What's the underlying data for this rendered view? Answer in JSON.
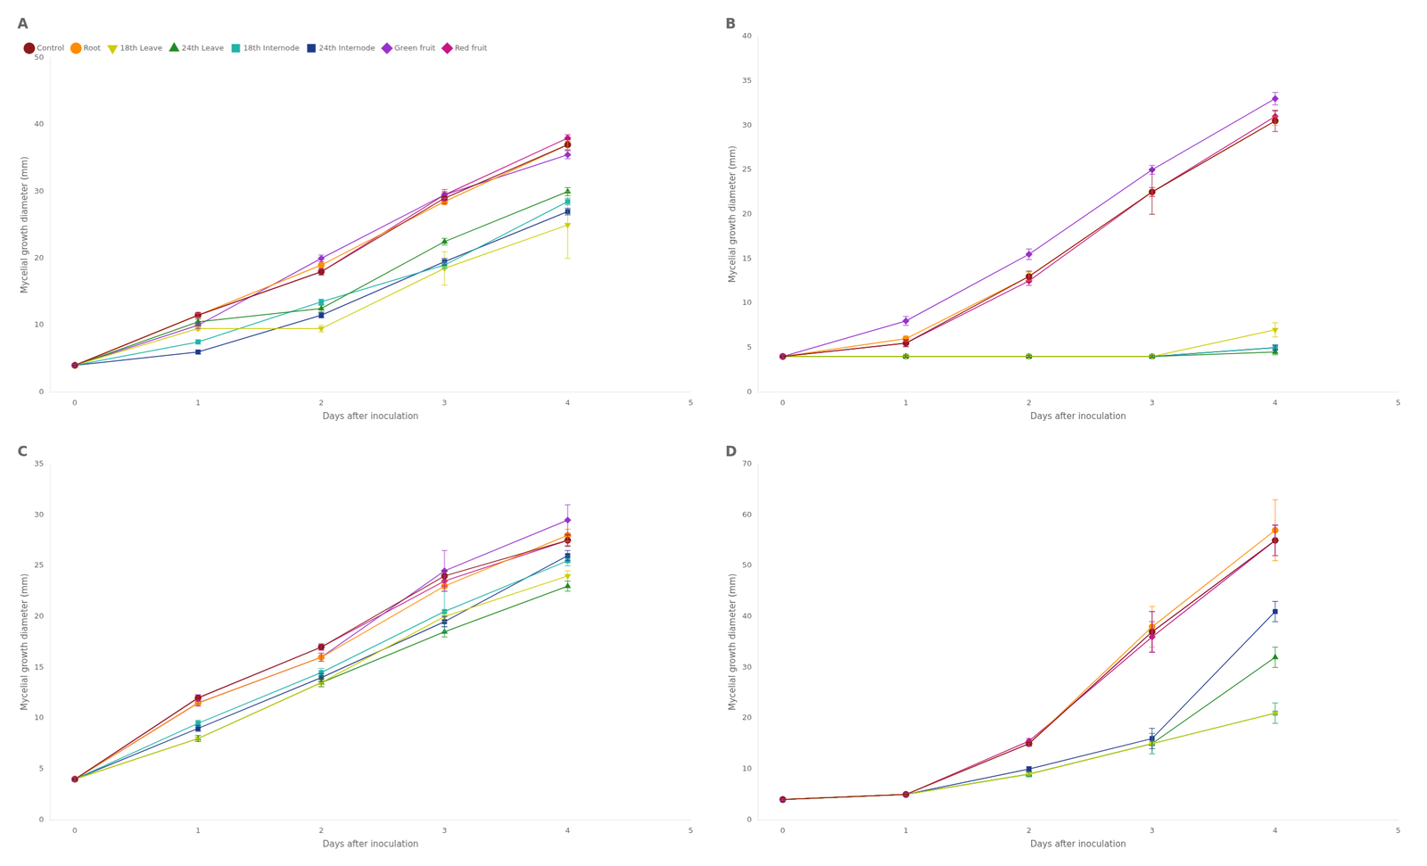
{
  "chart_data": [
    {
      "type": "line",
      "title": "A",
      "x_label": "Days after inoculation",
      "y_label": "Mycelial growth diameter (mm)",
      "x": [
        0,
        1,
        2,
        3,
        4
      ],
      "xlim": [
        -0.2,
        5
      ],
      "xticks": [
        0,
        1,
        2,
        3,
        4,
        5
      ],
      "ylim": [
        0,
        50
      ],
      "yticks": [
        0,
        10,
        20,
        30,
        40,
        50
      ],
      "grid": false,
      "legend": "upper left",
      "series": [
        {
          "name": "Control",
          "color": "#8B1A1A",
          "marker": "circle",
          "values": [
            4.0,
            11.5,
            18.0,
            29.0,
            37.0
          ],
          "yerr": [
            0.2,
            0.4,
            0.5,
            0.8,
            0.8
          ]
        },
        {
          "name": "Root",
          "color": "#FF8C00",
          "marker": "circle",
          "values": [
            4.0,
            11.5,
            19.0,
            28.5,
            37.0
          ],
          "yerr": [
            0.2,
            0.3,
            0.5,
            0.5,
            0.7
          ]
        },
        {
          "name": "18th Leave",
          "color": "#CCCC00",
          "marker": "triangle_down",
          "values": [
            4.0,
            9.5,
            9.5,
            18.5,
            25.0
          ],
          "yerr": [
            0.2,
            0.3,
            0.5,
            2.5,
            5.0
          ]
        },
        {
          "name": "24th Leave",
          "color": "#228B22",
          "marker": "triangle_up",
          "values": [
            4.0,
            10.5,
            12.5,
            22.5,
            30.0
          ],
          "yerr": [
            0.2,
            0.4,
            0.5,
            0.5,
            0.6
          ]
        },
        {
          "name": "18th Internode",
          "color": "#20B2AA",
          "marker": "square",
          "values": [
            4.0,
            7.5,
            13.5,
            19.0,
            28.5
          ],
          "yerr": [
            0.2,
            0.3,
            0.4,
            0.5,
            0.5
          ]
        },
        {
          "name": "24th Internode",
          "color": "#1E3A8A",
          "marker": "square",
          "values": [
            4.0,
            6.0,
            11.5,
            19.5,
            27.0
          ],
          "yerr": [
            0.2,
            0.3,
            0.4,
            0.5,
            0.5
          ]
        },
        {
          "name": "Green fruit",
          "color": "#9932CC",
          "marker": "diamond",
          "values": [
            4.0,
            10.0,
            20.0,
            29.5,
            35.5
          ],
          "yerr": [
            0.2,
            0.5,
            0.5,
            0.5,
            0.6
          ]
        },
        {
          "name": "Red fruit",
          "color": "#C71585",
          "marker": "diamond",
          "values": [
            4.0,
            11.5,
            18.0,
            29.5,
            38.0
          ],
          "yerr": [
            0.2,
            0.4,
            0.5,
            0.8,
            0.5
          ]
        }
      ]
    },
    {
      "type": "line",
      "title": "B",
      "x_label": "Days after inoculation",
      "y_label": "Mycelial growth diameter (mm)",
      "x": [
        0,
        1,
        2,
        3,
        4
      ],
      "xlim": [
        -0.2,
        5
      ],
      "xticks": [
        0,
        1,
        2,
        3,
        4,
        5
      ],
      "ylim": [
        0,
        40
      ],
      "yticks": [
        0,
        5,
        10,
        15,
        20,
        25,
        30,
        35,
        40
      ],
      "grid": false,
      "series": [
        {
          "name": "Control",
          "color": "#8B1A1A",
          "marker": "circle",
          "values": [
            4.0,
            5.5,
            13.0,
            22.5,
            30.5
          ],
          "yerr": [
            0.2,
            0.4,
            0.6,
            2.5,
            1.2
          ]
        },
        {
          "name": "Root",
          "color": "#FF8C00",
          "marker": "circle",
          "values": [
            4.0,
            6.0,
            13.0,
            22.5,
            30.5
          ],
          "yerr": [
            0.2,
            0.3,
            0.5,
            0.5,
            0.5
          ]
        },
        {
          "name": "18th Leave",
          "color": "#CCCC00",
          "marker": "triangle_down",
          "values": [
            4.0,
            4.0,
            4.0,
            4.0,
            7.0
          ],
          "yerr": [
            0.1,
            0.1,
            0.1,
            0.1,
            0.8
          ]
        },
        {
          "name": "24th Leave",
          "color": "#228B22",
          "marker": "triangle_up",
          "values": [
            4.0,
            4.0,
            4.0,
            4.0,
            4.5
          ],
          "yerr": [
            0.1,
            0.1,
            0.1,
            0.1,
            0.3
          ]
        },
        {
          "name": "18th Internode",
          "color": "#20B2AA",
          "marker": "square",
          "values": [
            4.0,
            4.0,
            4.0,
            4.0,
            5.0
          ],
          "yerr": [
            0.1,
            0.1,
            0.1,
            0.1,
            0.3
          ]
        },
        {
          "name": "24th Internode",
          "color": "#1E3A8A",
          "marker": "square",
          "values": [
            4.0,
            4.0,
            4.0,
            4.0,
            5.0
          ],
          "yerr": [
            0.1,
            0.1,
            0.1,
            0.1,
            0.3
          ]
        },
        {
          "name": "Green fruit",
          "color": "#9932CC",
          "marker": "diamond",
          "values": [
            4.0,
            8.0,
            15.5,
            25.0,
            33.0
          ],
          "yerr": [
            0.2,
            0.5,
            0.6,
            0.5,
            0.7
          ]
        },
        {
          "name": "Red fruit",
          "color": "#C71585",
          "marker": "diamond",
          "values": [
            4.0,
            5.5,
            12.5,
            22.5,
            31.0
          ],
          "yerr": [
            0.2,
            0.4,
            0.5,
            0.5,
            0.6
          ]
        }
      ]
    },
    {
      "type": "line",
      "title": "C",
      "x_label": "Days after inoculation",
      "y_label": "Mycelial growth diameter (mm)",
      "x": [
        0,
        1,
        2,
        3,
        4
      ],
      "xlim": [
        -0.2,
        5
      ],
      "xticks": [
        0,
        1,
        2,
        3,
        4,
        5
      ],
      "ylim": [
        0,
        35
      ],
      "yticks": [
        0,
        5,
        10,
        15,
        20,
        25,
        30,
        35
      ],
      "grid": false,
      "series": [
        {
          "name": "Control",
          "color": "#8B1A1A",
          "marker": "circle",
          "values": [
            4.0,
            12.0,
            17.0,
            24.0,
            27.5
          ],
          "yerr": [
            0.2,
            0.3,
            0.3,
            0.5,
            0.6
          ]
        },
        {
          "name": "Root",
          "color": "#FF8C00",
          "marker": "circle",
          "values": [
            4.0,
            11.5,
            16.0,
            23.0,
            28.0
          ],
          "yerr": [
            0.2,
            0.3,
            0.4,
            0.5,
            0.6
          ]
        },
        {
          "name": "18th Leave",
          "color": "#CCCC00",
          "marker": "triangle_down",
          "values": [
            4.0,
            8.0,
            13.5,
            20.0,
            24.0
          ],
          "yerr": [
            0.2,
            0.3,
            0.4,
            0.5,
            0.5
          ]
        },
        {
          "name": "24th Leave",
          "color": "#228B22",
          "marker": "triangle_up",
          "values": [
            4.0,
            8.0,
            13.5,
            18.5,
            23.0
          ],
          "yerr": [
            0.2,
            0.3,
            0.4,
            0.5,
            0.5
          ]
        },
        {
          "name": "18th Internode",
          "color": "#20B2AA",
          "marker": "square",
          "values": [
            4.0,
            9.5,
            14.5,
            20.5,
            25.5
          ],
          "yerr": [
            0.2,
            0.3,
            0.4,
            2.0,
            0.5
          ]
        },
        {
          "name": "24th Internode",
          "color": "#1E3A8A",
          "marker": "square",
          "values": [
            4.0,
            9.0,
            14.0,
            19.5,
            26.0
          ],
          "yerr": [
            0.2,
            0.3,
            0.4,
            0.5,
            0.5
          ]
        },
        {
          "name": "Green fruit",
          "color": "#9932CC",
          "marker": "diamond",
          "values": [
            4.0,
            11.5,
            16.0,
            24.5,
            29.5
          ],
          "yerr": [
            0.2,
            0.3,
            0.4,
            2.0,
            1.5
          ]
        },
        {
          "name": "Red fruit",
          "color": "#C71585",
          "marker": "diamond",
          "values": [
            4.0,
            12.0,
            17.0,
            23.5,
            27.5
          ],
          "yerr": [
            0.2,
            0.3,
            0.3,
            0.5,
            0.5
          ]
        }
      ]
    },
    {
      "type": "line",
      "title": "D",
      "x_label": "Days after inoculation",
      "y_label": "Mycelial growth diameter (mm)",
      "x": [
        0,
        1,
        2,
        3,
        4
      ],
      "xlim": [
        -0.2,
        5
      ],
      "xticks": [
        0,
        1,
        2,
        3,
        4,
        5
      ],
      "ylim": [
        0,
        70
      ],
      "yticks": [
        0,
        10,
        20,
        30,
        40,
        50,
        60,
        70
      ],
      "grid": false,
      "series": [
        {
          "name": "Control",
          "color": "#8B1A1A",
          "marker": "circle",
          "values": [
            4.0,
            5.0,
            15.0,
            37.0,
            55.0
          ],
          "yerr": [
            0.2,
            0.3,
            0.5,
            4.0,
            3.0
          ]
        },
        {
          "name": "Root",
          "color": "#FF8C00",
          "marker": "circle",
          "values": [
            4.0,
            5.0,
            15.0,
            38.0,
            57.0
          ],
          "yerr": [
            0.2,
            0.3,
            0.5,
            4.0,
            6.0
          ]
        },
        {
          "name": "18th Leave",
          "color": "#CCCC00",
          "marker": "triangle_down",
          "values": [
            4.0,
            5.0,
            9.0,
            15.0,
            21.0
          ],
          "yerr": [
            0.2,
            0.3,
            0.5,
            2.0,
            2.0
          ]
        },
        {
          "name": "24th Leave",
          "color": "#228B22",
          "marker": "triangle_up",
          "values": [
            4.0,
            5.0,
            9.0,
            15.0,
            32.0
          ],
          "yerr": [
            0.2,
            0.3,
            0.5,
            2.0,
            2.0
          ]
        },
        {
          "name": "18th Internode",
          "color": "#20B2AA",
          "marker": "square",
          "values": [
            4.0,
            5.0,
            9.0,
            15.0,
            21.0
          ],
          "yerr": [
            0.2,
            0.3,
            0.5,
            2.0,
            2.0
          ]
        },
        {
          "name": "24th Internode",
          "color": "#1E3A8A",
          "marker": "square",
          "values": [
            4.0,
            5.0,
            10.0,
            16.0,
            41.0
          ],
          "yerr": [
            0.2,
            0.3,
            0.5,
            2.0,
            2.0
          ]
        },
        {
          "name": "Green fruit",
          "color": "#9932CC",
          "marker": "diamond",
          "values": [
            4.0,
            5.0,
            15.0,
            37.0,
            55.0
          ],
          "yerr": [
            0.2,
            0.3,
            0.5,
            4.0,
            3.0
          ]
        },
        {
          "name": "Red fruit",
          "color": "#C71585",
          "marker": "diamond",
          "values": [
            4.0,
            5.0,
            15.5,
            36.0,
            55.0
          ],
          "yerr": [
            0.2,
            0.3,
            0.5,
            3.0,
            3.0
          ]
        }
      ]
    }
  ]
}
